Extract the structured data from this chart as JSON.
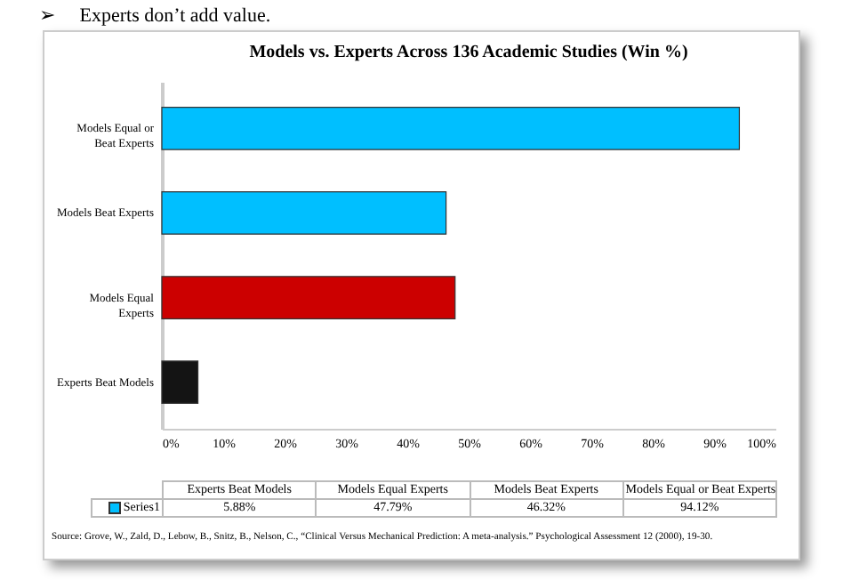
{
  "chart_data": {
    "type": "bar",
    "orientation": "horizontal",
    "title": "Models vs. Experts Across 136 Academic Studies (Win %)",
    "categories": [
      "Models Equal or Beat Experts",
      "Models Beat Experts",
      "Models Equal Experts",
      "Experts Beat Models"
    ],
    "series": [
      {
        "name": "Series1",
        "colors": [
          "#00bfff",
          "#00bfff",
          "#cc0000",
          "#141414"
        ],
        "values": [
          94.12,
          46.32,
          47.79,
          5.88
        ]
      }
    ],
    "value_labels": [
      "94.12%",
      "46.32%",
      "47.79%",
      "5.88%"
    ],
    "xlim": [
      0,
      100
    ],
    "xticks": [
      {
        "value": 0,
        "label": "0%"
      },
      {
        "value": 10,
        "label": "10%"
      },
      {
        "value": 20,
        "label": "20%"
      },
      {
        "value": 30,
        "label": "30%"
      },
      {
        "value": 40,
        "label": "40%"
      },
      {
        "value": 50,
        "label": "50%"
      },
      {
        "value": 60,
        "label": "60%"
      },
      {
        "value": 70,
        "label": "70%"
      },
      {
        "value": 80,
        "label": "80%"
      },
      {
        "value": 90,
        "label": "90%"
      },
      {
        "value": 100,
        "label": "100%"
      }
    ],
    "grid": false,
    "legend": "bottom",
    "annotations": [
      "➢     Experts don’t add value.",
      "Source: Grove, W., Zald, D., Lebow, B., Snitz, B., Nelson, C., “Clinical Versus Mechanical Prediction: A meta-analysis.” Psychological Assessment 12 (2000), 19-30."
    ]
  }
}
